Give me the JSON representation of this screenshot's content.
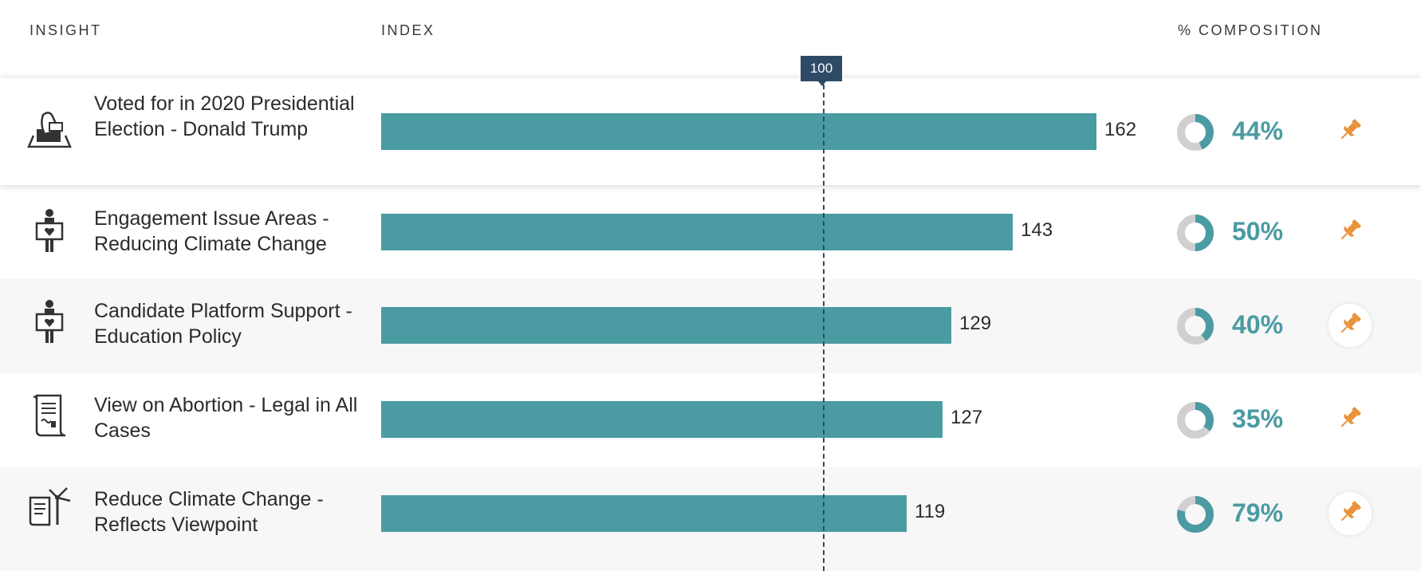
{
  "header": {
    "insight": "INSIGHT",
    "index": "INDEX",
    "composition": "% COMPOSITION"
  },
  "reference": {
    "label": "100",
    "value": 100
  },
  "colors": {
    "bar": "#4a9ba2",
    "reference": "#2e4a66",
    "pin": "#e8923a",
    "donut_track": "#d0d0d0"
  },
  "rows": [
    {
      "icon": "ballot-box-icon",
      "label": "Voted for in 2020 Presidential Election - Donald Trump",
      "index": 162,
      "index_label": "162",
      "composition": 0.44,
      "composition_label": "44%"
    },
    {
      "icon": "person-holding-heart-sign-icon",
      "label": "Engagement Issue Areas - Reducing Climate Change",
      "index": 143,
      "index_label": "143",
      "composition": 0.5,
      "composition_label": "50%"
    },
    {
      "icon": "person-holding-heart-sign-icon",
      "label": "Candidate Platform Support - Education Policy",
      "index": 129,
      "index_label": "129",
      "composition": 0.4,
      "composition_label": "40%"
    },
    {
      "icon": "document-scroll-icon",
      "label": "View on Abortion - Legal in All Cases",
      "index": 127,
      "index_label": "127",
      "composition": 0.35,
      "composition_label": "35%"
    },
    {
      "icon": "wind-turbine-document-icon",
      "label": "Reduce Climate Change - Reflects Viewpoint",
      "index": 119,
      "index_label": "119",
      "composition": 0.79,
      "composition_label": "79%"
    }
  ],
  "chart_data": {
    "type": "bar",
    "categories": [
      "Voted for in 2020 Presidential Election - Donald Trump",
      "Engagement Issue Areas - Reducing Climate Change",
      "Candidate Platform Support - Education Policy",
      "View on Abortion - Legal in All Cases",
      "Reduce Climate Change - Reflects Viewpoint"
    ],
    "values": [
      162,
      143,
      129,
      127,
      119
    ],
    "title": "",
    "xlabel": "INDEX",
    "ylabel": "INSIGHT",
    "reference_line": 100
  }
}
